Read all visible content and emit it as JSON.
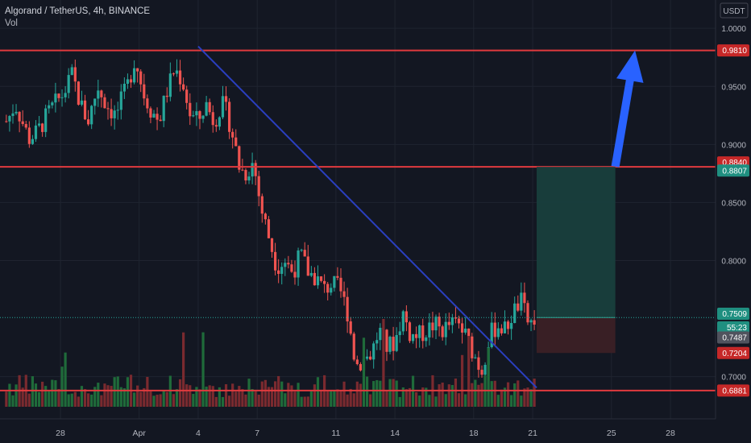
{
  "header": {
    "symbol": "Algorand / TetherUS, 4h, BINANCE",
    "volume_label": "Vol"
  },
  "colors": {
    "background": "#131722",
    "grid": "#1f2430",
    "up": "#26a69a",
    "down": "#ef5350",
    "vol_up": "#1f6b3a",
    "vol_down": "#7a2a2f",
    "level_line": "#e03a3e",
    "trend_line": "#2a3fc0",
    "arrow": "#2962ff",
    "target_zone": "#183f3d",
    "stop_zone": "#3b2026",
    "axis_text": "#b2b5be"
  },
  "chart_data": {
    "type": "candlestick",
    "title": "Algorand / TetherUS, 4h, BINANCE",
    "currency": "USDT",
    "ylim": [
      0.6637,
      1.0244
    ],
    "y_ticks": [
      "1.0000",
      "0.9500",
      "0.9000",
      "0.8500",
      "0.8000",
      "0.7000"
    ],
    "x_ticks": [
      "28",
      "Apr",
      "4",
      "7",
      "11",
      "14",
      "18",
      "21",
      "25",
      "28"
    ],
    "x_tick_days": [
      28,
      32,
      35,
      38,
      42,
      45,
      49,
      52,
      56,
      59
    ],
    "price_labels": [
      {
        "value": "0.9810",
        "style": "red"
      },
      {
        "value": "0.8840",
        "style": "red"
      },
      {
        "value": "0.8807",
        "style": "teal"
      },
      {
        "value": "0.7509",
        "style": "teal"
      },
      {
        "value": "55:23",
        "style": "teal"
      },
      {
        "value": "0.7487",
        "style": "grey"
      },
      {
        "value": "0.7204",
        "style": "red"
      },
      {
        "value": "0.6881",
        "style": "red"
      }
    ],
    "horizontal_levels": [
      0.981,
      0.8807,
      0.6881
    ],
    "trendline": {
      "from": {
        "day": 35,
        "price": 0.9845
      },
      "to": {
        "day": 52.2,
        "price": 0.6905
      }
    },
    "position": {
      "entry": 0.7509,
      "target": 0.8807,
      "stop": 0.7204,
      "start_day": 52.2,
      "end_day": 56.2
    },
    "arrow": {
      "from": {
        "day": 56.2,
        "price": 0.881
      },
      "to": {
        "day": 57.2,
        "price": 0.981
      }
    },
    "price_path": [
      [
        25.3,
        0.92
      ],
      [
        25.7,
        0.935
      ],
      [
        26.4,
        0.905
      ],
      [
        26.8,
        0.91
      ],
      [
        27.5,
        0.93
      ],
      [
        28.2,
        0.945
      ],
      [
        28.6,
        0.96
      ],
      [
        29.0,
        0.935
      ],
      [
        29.4,
        0.92
      ],
      [
        29.9,
        0.95
      ],
      [
        30.3,
        0.935
      ],
      [
        30.8,
        0.925
      ],
      [
        31.4,
        0.95
      ],
      [
        31.8,
        0.975
      ],
      [
        32.2,
        0.945
      ],
      [
        32.6,
        0.93
      ],
      [
        33.0,
        0.92
      ],
      [
        33.4,
        0.945
      ],
      [
        33.8,
        0.965
      ],
      [
        34.2,
        0.955
      ],
      [
        34.6,
        0.925
      ],
      [
        35.0,
        0.92
      ],
      [
        35.4,
        0.935
      ],
      [
        35.8,
        0.92
      ],
      [
        36.2,
        0.935
      ],
      [
        36.5,
        0.925
      ],
      [
        36.8,
        0.905
      ],
      [
        37.1,
        0.88
      ],
      [
        37.4,
        0.875
      ],
      [
        37.8,
        0.885
      ],
      [
        38.2,
        0.845
      ],
      [
        38.6,
        0.82
      ],
      [
        39.0,
        0.795
      ],
      [
        39.4,
        0.8
      ],
      [
        39.8,
        0.79
      ],
      [
        40.2,
        0.805
      ],
      [
        40.6,
        0.79
      ],
      [
        41.0,
        0.785
      ],
      [
        41.4,
        0.775
      ],
      [
        41.8,
        0.78
      ],
      [
        42.2,
        0.775
      ],
      [
        42.6,
        0.755
      ],
      [
        43.0,
        0.71
      ],
      [
        43.4,
        0.715
      ],
      [
        43.8,
        0.72
      ],
      [
        44.2,
        0.74
      ],
      [
        44.6,
        0.725
      ],
      [
        45.0,
        0.73
      ],
      [
        45.4,
        0.755
      ],
      [
        45.8,
        0.735
      ],
      [
        46.2,
        0.735
      ],
      [
        46.6,
        0.74
      ],
      [
        47.0,
        0.745
      ],
      [
        47.4,
        0.74
      ],
      [
        47.8,
        0.745
      ],
      [
        48.2,
        0.745
      ],
      [
        48.6,
        0.735
      ],
      [
        49.0,
        0.72
      ],
      [
        49.4,
        0.705
      ],
      [
        49.8,
        0.735
      ],
      [
        50.2,
        0.745
      ],
      [
        50.6,
        0.74
      ],
      [
        51.0,
        0.755
      ],
      [
        51.4,
        0.765
      ],
      [
        51.8,
        0.745
      ],
      [
        52.2,
        0.7509
      ]
    ],
    "volume": {
      "note": "Volume histogram bars along the bottom of the pane"
    }
  }
}
